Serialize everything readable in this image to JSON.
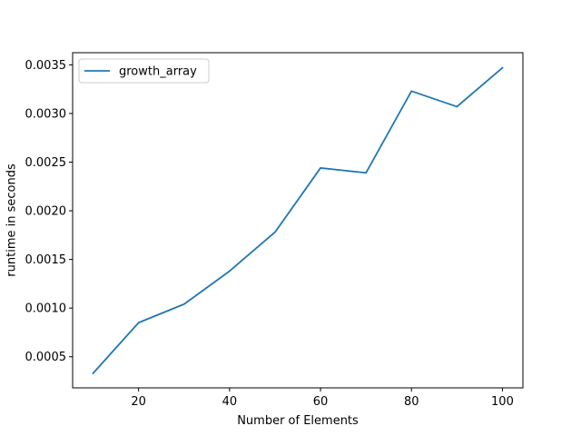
{
  "chart_data": {
    "type": "line",
    "title": "",
    "xlabel": "Number of Elements",
    "ylabel": "runtime in seconds",
    "x": [
      10,
      20,
      30,
      40,
      50,
      60,
      70,
      80,
      90,
      100
    ],
    "series": [
      {
        "name": "growth_array",
        "color": "#1f77b4",
        "values": [
          0.00033,
          0.00085,
          0.00104,
          0.00138,
          0.00178,
          0.00244,
          0.00239,
          0.00323,
          0.00307,
          0.00347
        ]
      }
    ],
    "xlim": [
      5.5,
      104.5
    ],
    "ylim": [
      0.00018,
      0.003625
    ],
    "xticks": [
      20,
      40,
      60,
      80,
      100
    ],
    "xtick_labels": [
      "20",
      "40",
      "60",
      "80",
      "100"
    ],
    "yticks": [
      0.0005,
      0.001,
      0.0015,
      0.002,
      0.0025,
      0.003,
      0.0035
    ],
    "ytick_labels": [
      "0.0005",
      "0.0010",
      "0.0015",
      "0.0020",
      "0.0025",
      "0.0030",
      "0.0035"
    ],
    "grid": false,
    "legend_position": "top-left"
  }
}
